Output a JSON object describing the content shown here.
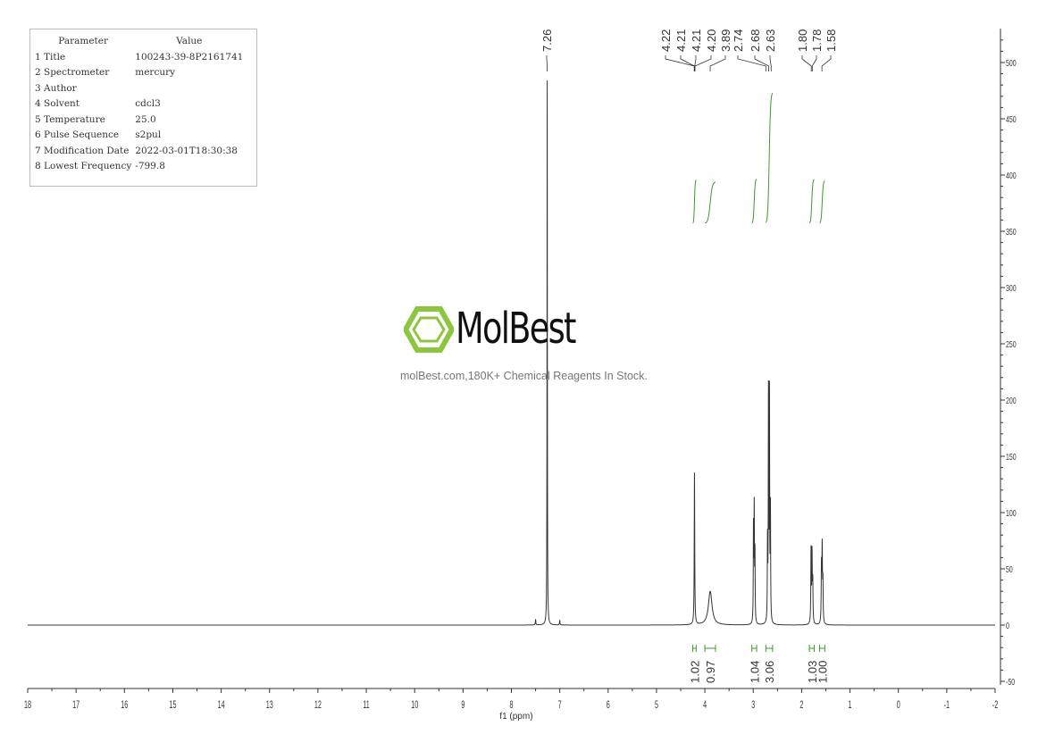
{
  "parameters": {
    "header": [
      "Parameter",
      "Value"
    ],
    "rows": [
      [
        "1 Title",
        "100243-39-8P2161741"
      ],
      [
        "2 Spectrometer",
        "mercury"
      ],
      [
        "3 Author",
        ""
      ],
      [
        "4 Solvent",
        "cdcl3"
      ],
      [
        "5 Temperature",
        "25.0"
      ],
      [
        "6 Pulse Sequence",
        "s2pul"
      ],
      [
        "7 Modification Date",
        "2022-03-01T18:30:38"
      ],
      [
        "8 Lowest Frequency",
        "-799.8"
      ]
    ]
  },
  "watermark": {
    "brand": "MolBest",
    "tagline": "molBest.com,180K+ Chemical Reagents In Stock.",
    "color": "#8cc63f"
  },
  "chart_data": {
    "type": "line",
    "xlabel": "f1 (ppm)",
    "xlim": [
      18,
      -2
    ],
    "ylim": [
      -50,
      530
    ],
    "x_ticks": [
      18,
      17,
      16,
      15,
      14,
      13,
      12,
      11,
      10,
      9,
      8,
      7,
      6,
      5,
      4,
      3,
      2,
      1,
      0,
      -1,
      -2
    ],
    "y_ticks": [
      -50,
      0,
      50,
      100,
      150,
      200,
      250,
      300,
      350,
      400,
      450,
      500
    ],
    "line_color": "#333333",
    "integral_color": "#3a9a2a",
    "peaks": [
      {
        "ppm": 7.26,
        "height": 484,
        "width": 0.004
      },
      {
        "ppm": 7.5,
        "height": 5,
        "width": 0.006
      },
      {
        "ppm": 7.0,
        "height": 4,
        "width": 0.006
      },
      {
        "ppm": 4.215,
        "height": 135,
        "width": 0.006
      },
      {
        "ppm": 3.89,
        "height": 30,
        "width": 0.045
      },
      {
        "ppm": 2.995,
        "height": 85,
        "width": 0.005
      },
      {
        "ppm": 2.98,
        "height": 100,
        "width": 0.005
      },
      {
        "ppm": 2.965,
        "height": 60,
        "width": 0.005
      },
      {
        "ppm": 2.705,
        "height": 70,
        "width": 0.005
      },
      {
        "ppm": 2.685,
        "height": 200,
        "width": 0.005
      },
      {
        "ppm": 2.665,
        "height": 200,
        "width": 0.005
      },
      {
        "ppm": 2.645,
        "height": 100,
        "width": 0.005
      },
      {
        "ppm": 1.805,
        "height": 65,
        "width": 0.006
      },
      {
        "ppm": 1.785,
        "height": 60,
        "width": 0.006
      },
      {
        "ppm": 1.77,
        "height": 35,
        "width": 0.006
      },
      {
        "ppm": 1.59,
        "height": 50,
        "width": 0.006
      },
      {
        "ppm": 1.575,
        "height": 65,
        "width": 0.006
      },
      {
        "ppm": 1.56,
        "height": 35,
        "width": 0.006
      }
    ],
    "peak_labels": [
      {
        "text": "7.26",
        "ppm": 7.26
      },
      {
        "text": "4.22",
        "ppm": 4.22
      },
      {
        "text": "4.21",
        "ppm": 4.215
      },
      {
        "text": "4.21",
        "ppm": 4.21
      },
      {
        "text": "4.20",
        "ppm": 4.205
      },
      {
        "text": "3.89",
        "ppm": 3.89
      },
      {
        "text": "2.74",
        "ppm": 2.74
      },
      {
        "text": "2.68",
        "ppm": 2.68
      },
      {
        "text": "2.63",
        "ppm": 2.63
      },
      {
        "text": "1.80",
        "ppm": 1.8
      },
      {
        "text": "1.78",
        "ppm": 1.78
      },
      {
        "text": "1.58",
        "ppm": 1.58
      }
    ],
    "integrals": [
      {
        "value": "1.02",
        "from": 4.25,
        "to": 4.18
      },
      {
        "value": "0.97",
        "from": 4.0,
        "to": 3.78
      },
      {
        "value": "1.04",
        "from": 3.03,
        "to": 2.93
      },
      {
        "value": "3.06",
        "from": 2.74,
        "to": 2.6
      },
      {
        "value": "1.03",
        "from": 1.84,
        "to": 1.74
      },
      {
        "value": "1.00",
        "from": 1.63,
        "to": 1.52
      }
    ]
  }
}
